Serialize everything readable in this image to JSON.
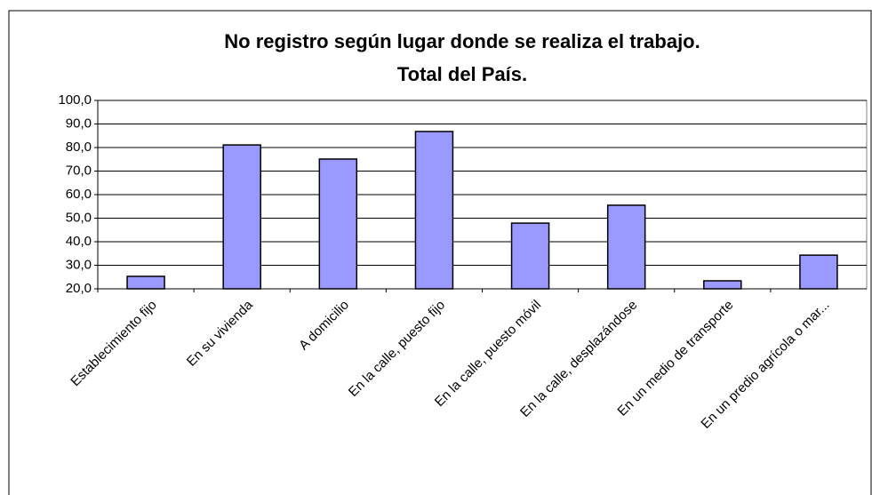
{
  "chart_data": {
    "type": "bar",
    "title": [
      "No registro según lugar donde se realiza el trabajo.",
      "Total del País."
    ],
    "categories": [
      "Establecimiento fijo",
      "En su vivienda",
      "A domicilio",
      "En la calle, puesto fijo",
      "En la calle, puesto móvil",
      "En la calle, desplazándose",
      "En un medio de transporte",
      "En un predio agrícola o mar..."
    ],
    "values": [
      25.3,
      81.1,
      75.1,
      86.8,
      47.9,
      55.5,
      23.4,
      34.3
    ],
    "color": "#9999ff",
    "ylim": [
      20,
      100
    ],
    "yticks": [
      {
        "value": 20,
        "label": "20,0"
      },
      {
        "value": 30,
        "label": "30,0"
      },
      {
        "value": 40,
        "label": "40,0"
      },
      {
        "value": 50,
        "label": "50,0"
      },
      {
        "value": 60,
        "label": "60,0"
      },
      {
        "value": 70,
        "label": "70,0"
      },
      {
        "value": 80,
        "label": "80,0"
      },
      {
        "value": 90,
        "label": "90,0"
      },
      {
        "value": 100,
        "label": "100,0"
      }
    ],
    "grid": true
  }
}
